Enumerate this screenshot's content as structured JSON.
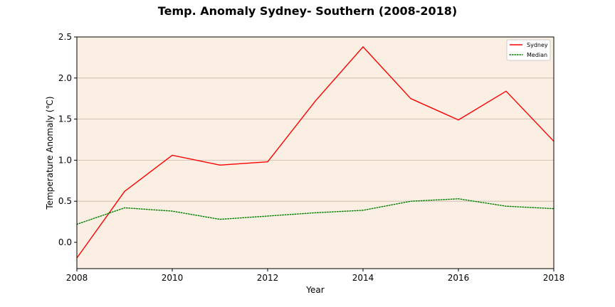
{
  "chart_data": {
    "type": "line",
    "title": "Temp. Anomaly Sydney- Southern (2008-2018)",
    "xlabel": "Year",
    "ylabel": "Temperature Anomaly (℃)",
    "xlim": [
      2008,
      2018
    ],
    "ylim": [
      -0.32,
      2.5
    ],
    "xticks": [
      2008,
      2010,
      2012,
      2014,
      2016,
      2018
    ],
    "xtick_labels": [
      "2008",
      "2010",
      "2012",
      "2014",
      "2016",
      "2018"
    ],
    "yticks": [
      0.0,
      0.5,
      1.0,
      1.5,
      2.0,
      2.5
    ],
    "ytick_labels": [
      "0.0",
      "0.5",
      "1.0",
      "1.5",
      "2.0",
      "2.5"
    ],
    "grid": "horizontal",
    "legend_position": "top-right",
    "background_color": "#fbefe3",
    "grid_color": "#c8b4a8",
    "x": [
      2008,
      2009,
      2010,
      2011,
      2012,
      2013,
      2014,
      2015,
      2016,
      2017,
      2018
    ],
    "series": [
      {
        "name": "Sydney",
        "color": "#ff0000",
        "style": "solid",
        "values": [
          -0.19,
          0.62,
          1.06,
          0.94,
          0.98,
          1.72,
          2.38,
          1.75,
          1.49,
          1.84,
          1.23
        ]
      },
      {
        "name": "Median",
        "color": "#008000",
        "style": "dotted",
        "values": [
          0.22,
          0.42,
          0.38,
          0.28,
          0.32,
          0.36,
          0.39,
          0.5,
          0.53,
          0.44,
          0.41
        ]
      }
    ]
  }
}
